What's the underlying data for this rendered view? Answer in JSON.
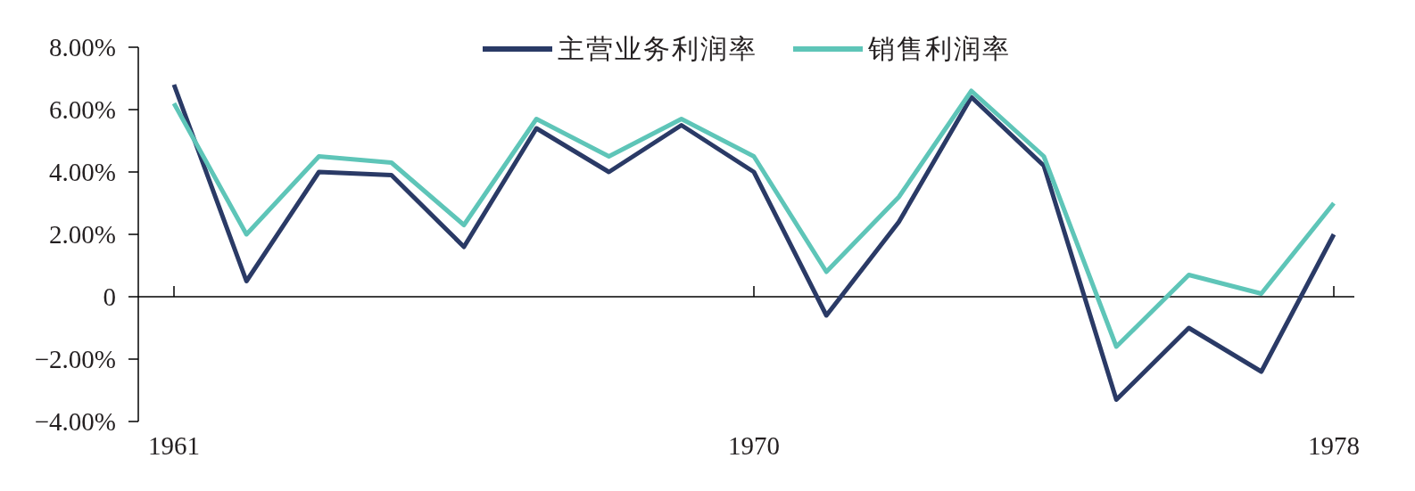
{
  "chart_data": {
    "type": "line",
    "categories": [
      "1961",
      null,
      null,
      null,
      null,
      null,
      null,
      null,
      "1970",
      null,
      null,
      null,
      null,
      null,
      null,
      null,
      "1978"
    ],
    "series": [
      {
        "name": "主营业务利润率",
        "color": "#2a3a66",
        "values": [
          6.8,
          0.5,
          4.0,
          3.9,
          1.6,
          5.4,
          4.0,
          5.5,
          4.0,
          -0.6,
          2.4,
          6.4,
          4.2,
          -3.3,
          -1.0,
          -2.4,
          2.0
        ]
      },
      {
        "name": "销售利润率",
        "color": "#5ec5b8",
        "values": [
          6.2,
          2.0,
          4.5,
          4.3,
          2.3,
          5.7,
          4.5,
          5.7,
          4.5,
          0.8,
          3.2,
          6.6,
          4.5,
          -1.6,
          0.7,
          0.1,
          3.0
        ]
      }
    ],
    "ylim": [
      -4,
      8
    ],
    "yticks": [
      {
        "value": -4,
        "label": "−4.00%"
      },
      {
        "value": -2,
        "label": "−2.00%"
      },
      0,
      {
        "value": 2,
        "label": "2.00%"
      },
      {
        "value": 4,
        "label": "4.00%"
      },
      {
        "value": 6,
        "label": "6.00%"
      },
      {
        "value": 8,
        "label": "8.00%"
      }
    ],
    "legend": "top"
  }
}
